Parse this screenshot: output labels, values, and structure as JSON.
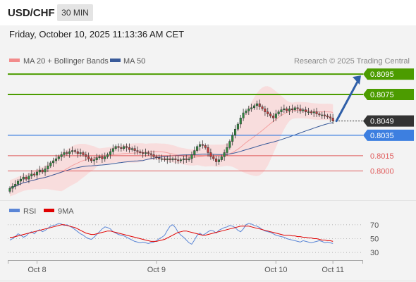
{
  "header": {
    "symbol": "USD/CHF",
    "interval": "30 MIN"
  },
  "datetime": "Friday, October 10, 2025 11:13:36 AM CET",
  "legend": {
    "bb_label": "MA 20 + Bollinger Bands",
    "ma50_label": "MA 50",
    "credit": "Research © 2025 Trading Central"
  },
  "rsi_legend": {
    "rsi_label": "RSI",
    "ma_label": "9MA"
  },
  "colors": {
    "green": "#4c9c00",
    "blue": "#3d7fe0",
    "red": "#e05a5a",
    "dark": "#333333",
    "band": "#fad6d6",
    "ma50": "#3a5b9a"
  },
  "chart_data": [
    {
      "type": "candlestick",
      "title": "USD/CHF",
      "ylim": [
        0.7972,
        0.8102
      ],
      "x_ticks": [
        {
          "label": "Oct 8",
          "index": 10
        },
        {
          "label": "Oct 9",
          "index": 54
        },
        {
          "label": "Oct 10",
          "index": 98
        },
        {
          "label": "Oct 11",
          "index": 119
        }
      ],
      "last_price": {
        "value": 0.8049,
        "label": "0.8049"
      },
      "levels": [
        {
          "value": 0.8095,
          "label": "0.8095",
          "kind": "resistance"
        },
        {
          "value": 0.8075,
          "label": "0.8075",
          "kind": "resistance"
        },
        {
          "value": 0.8035,
          "label": "0.8035",
          "kind": "pivot"
        },
        {
          "value": 0.8015,
          "label": "0.8015",
          "kind": "support"
        },
        {
          "value": 0.8,
          "label": "0.8000",
          "kind": "support"
        }
      ],
      "projection": {
        "from": [
          0.8049
        ],
        "to": 0.8095
      },
      "close": [
        0.7983,
        0.7985,
        0.7987,
        0.799,
        0.7992,
        0.7994,
        0.7992,
        0.7995,
        0.7997,
        0.7996,
        0.7999,
        0.8001,
        0.7999,
        0.8002,
        0.8005,
        0.8008,
        0.801,
        0.8012,
        0.8014,
        0.8016,
        0.8018,
        0.8017,
        0.8019,
        0.802,
        0.8019,
        0.8017,
        0.8018,
        0.8016,
        0.8014,
        0.8012,
        0.801,
        0.8011,
        0.8013,
        0.8014,
        0.8012,
        0.8014,
        0.8016,
        0.8019,
        0.8022,
        0.8024,
        0.8023,
        0.8022,
        0.8024,
        0.8023,
        0.8021,
        0.8022,
        0.802,
        0.8019,
        0.8018,
        0.8017,
        0.8018,
        0.8017,
        0.8016,
        0.8014,
        0.8013,
        0.8012,
        0.8012,
        0.8011,
        0.8012,
        0.8011,
        0.8012,
        0.8011,
        0.801,
        0.8011,
        0.8012,
        0.8011,
        0.8012,
        0.8016,
        0.802,
        0.8024,
        0.8026,
        0.8025,
        0.8023,
        0.8018,
        0.8014,
        0.8012,
        0.8009,
        0.8011,
        0.8014,
        0.8018,
        0.8023,
        0.8029,
        0.8035,
        0.8041,
        0.8046,
        0.8052,
        0.8057,
        0.8059,
        0.8061,
        0.8062,
        0.8064,
        0.8066,
        0.8063,
        0.8061,
        0.8058,
        0.8056,
        0.8054,
        0.8052,
        0.8056,
        0.8058,
        0.806,
        0.8061,
        0.8059,
        0.8061,
        0.806,
        0.8062,
        0.8061,
        0.8059,
        0.806,
        0.8058,
        0.8058,
        0.8057,
        0.8058,
        0.8056,
        0.8055,
        0.8055,
        0.8054,
        0.8053,
        0.8052,
        0.8049
      ],
      "rsi": {
        "ylim": [
          20,
          80
        ],
        "ticks": [
          30,
          50,
          70
        ],
        "series": [
          {
            "name": "RSI",
            "values": [
              48,
              50,
              53,
              57,
              55,
              52,
              54,
              58,
              60,
              57,
              61,
              63,
              60,
              62,
              65,
              68,
              69,
              70,
              72,
              71,
              69,
              70,
              68,
              66,
              63,
              60,
              57,
              55,
              52,
              50,
              49,
              52,
              56,
              60,
              64,
              67,
              66,
              64,
              60,
              58,
              56,
              55,
              54,
              52,
              50,
              48,
              46,
              45,
              44,
              45,
              44,
              43,
              44,
              45,
              47,
              50,
              52,
              55,
              62,
              68,
              70,
              66,
              59,
              55,
              52,
              48,
              44,
              42,
              48,
              55,
              58,
              55,
              57,
              60,
              62,
              61,
              58,
              62,
              64,
              66,
              67,
              69,
              68,
              66,
              62,
              60,
              64,
              70,
              72,
              71,
              69,
              68,
              66,
              63,
              61,
              60,
              59,
              57,
              55,
              54,
              53,
              52,
              50,
              49,
              48,
              47,
              46,
              45,
              47,
              46,
              45,
              44,
              45,
              46,
              47,
              46,
              44,
              45,
              44,
              43
            ]
          },
          {
            "name": "9MA",
            "values": [
              52,
              52,
              53,
              54,
              55,
              56,
              57,
              58,
              59,
              60,
              61,
              62,
              63,
              64,
              65,
              66,
              67,
              68,
              69,
              70,
              70,
              69,
              68,
              67,
              66,
              64,
              62,
              60,
              58,
              57,
              56,
              56,
              57,
              58,
              59,
              60,
              61,
              61,
              60,
              59,
              58,
              57,
              56,
              55,
              54,
              53,
              52,
              51,
              50,
              49,
              48,
              47,
              46,
              46,
              46,
              47,
              48,
              49,
              51,
              53,
              55,
              57,
              59,
              60,
              61,
              61,
              60,
              59,
              58,
              57,
              56,
              55,
              55,
              56,
              57,
              58,
              59,
              60,
              61,
              62,
              63,
              64,
              65,
              66,
              67,
              68,
              68,
              68,
              68,
              67,
              66,
              65,
              64,
              63,
              62,
              61,
              60,
              59,
              58,
              57,
              56,
              55,
              55,
              55,
              54,
              54,
              53,
              53,
              52,
              52,
              51,
              51,
              50,
              50,
              49,
              48,
              48,
              47,
              47,
              46
            ]
          }
        ]
      }
    }
  ]
}
